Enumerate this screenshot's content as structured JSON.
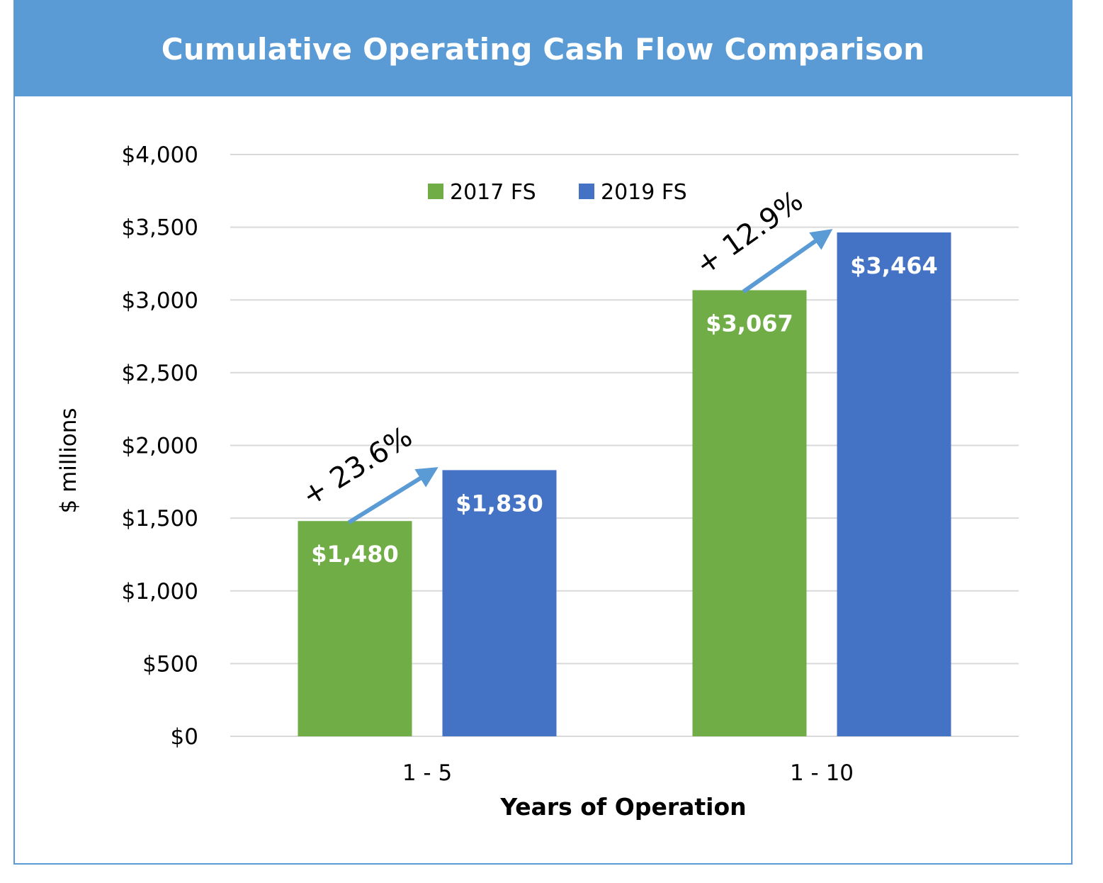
{
  "chart_data": {
    "type": "bar",
    "title": "Cumulative Operating Cash Flow Comparison",
    "xlabel": "Years of Operation",
    "ylabel": "$ millions",
    "categories": [
      "1 - 5",
      "1 - 10"
    ],
    "series": [
      {
        "name": "2017 FS",
        "color": "#70ad47",
        "values": [
          1480,
          3067
        ],
        "labels": [
          "$1,480",
          "$3,067"
        ]
      },
      {
        "name": "2019 FS",
        "color": "#4472c4",
        "values": [
          1830,
          3464
        ],
        "labels": [
          "$1,830",
          "$3,464"
        ]
      }
    ],
    "ylim": [
      0,
      4000
    ],
    "yticks": [
      0,
      500,
      1000,
      1500,
      2000,
      2500,
      3000,
      3500,
      4000
    ],
    "ytick_labels": [
      "$0",
      "$500",
      "$1,000",
      "$1,500",
      "$2,000",
      "$2,500",
      "$3,000",
      "$3,500",
      "$4,000"
    ],
    "annotations": [
      "+ 23.6%",
      "+ 12.9%"
    ],
    "annotation_arrow_color": "#5b9bd5",
    "grid": true,
    "legend_position": "top-center",
    "title_bar_color": "#5b9bd5"
  }
}
